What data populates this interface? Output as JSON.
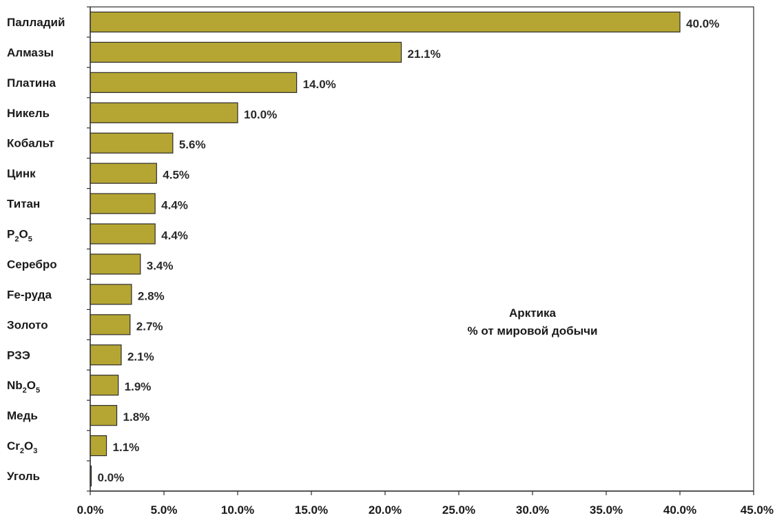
{
  "chart_data": {
    "type": "bar",
    "orientation": "horizontal",
    "categories": [
      {
        "label": "Палладий"
      },
      {
        "label": "Алмазы"
      },
      {
        "label": "Платина"
      },
      {
        "label": "Никель"
      },
      {
        "label": "Кобальт"
      },
      {
        "label": "Цинк"
      },
      {
        "label": "Титан"
      },
      {
        "label": "P2O5",
        "rich": [
          [
            "P",
            ""
          ],
          [
            "2",
            "sub"
          ],
          [
            "O",
            ""
          ],
          [
            "5",
            "sub"
          ]
        ]
      },
      {
        "label": "Серебро"
      },
      {
        "label": "Fe-руда"
      },
      {
        "label": "Золото"
      },
      {
        "label": "РЗЭ"
      },
      {
        "label": "Nb2O5",
        "rich": [
          [
            "Nb",
            ""
          ],
          [
            "2",
            "sub"
          ],
          [
            "O",
            ""
          ],
          [
            "5",
            "sub"
          ]
        ]
      },
      {
        "label": "Медь"
      },
      {
        "label": "Cr2O3",
        "rich": [
          [
            "Cr",
            ""
          ],
          [
            "2",
            "sub"
          ],
          [
            "O",
            ""
          ],
          [
            "3",
            "sub"
          ]
        ]
      },
      {
        "label": "Уголь"
      }
    ],
    "values": [
      40.0,
      21.1,
      14.0,
      10.0,
      5.6,
      4.5,
      4.4,
      4.4,
      3.4,
      2.8,
      2.7,
      2.1,
      1.9,
      1.8,
      1.1,
      0.0
    ],
    "data_labels": [
      "40.0%",
      "21.1%",
      "14.0%",
      "10.0%",
      "5.6%",
      "4.5%",
      "4.4%",
      "4.4%",
      "3.4%",
      "2.8%",
      "2.7%",
      "2.1%",
      "1.9%",
      "1.8%",
      "1.1%",
      "0.0%"
    ],
    "xlim": [
      0,
      45
    ],
    "x_ticks": [
      0,
      5,
      10,
      15,
      20,
      25,
      30,
      35,
      40,
      45
    ],
    "x_tick_labels": [
      "0.0%",
      "5.0%",
      "10.0%",
      "15.0%",
      "20.0%",
      "25.0%",
      "30.0%",
      "35.0%",
      "40.0%",
      "45.0%"
    ],
    "annotation": [
      "Арктика",
      "% от мировой добычи"
    ],
    "bar_color": "#b5a633",
    "grid": false
  }
}
